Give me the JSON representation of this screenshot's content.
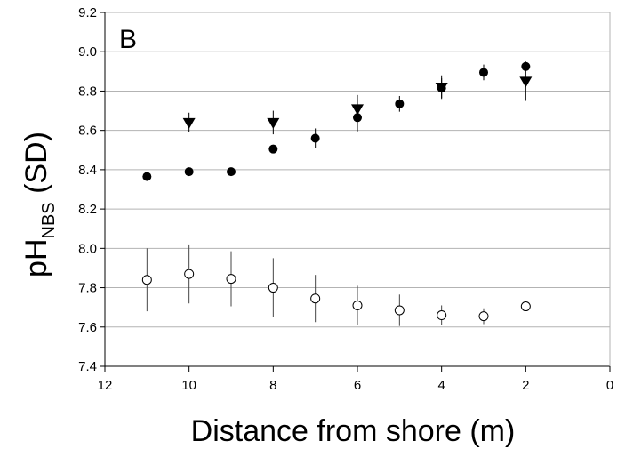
{
  "chart_data": {
    "type": "scatter",
    "panel_label": "B",
    "xlabel": "Distance from shore (m)",
    "ylabel": {
      "main": "pH",
      "subscript": "NBS",
      "suffix": " (SD)"
    },
    "xlim": [
      12,
      0
    ],
    "ylim": [
      7.4,
      9.2
    ],
    "x_reversed": true,
    "x_ticks": [
      12,
      10,
      8,
      6,
      4,
      2,
      0
    ],
    "x_tick_labels": [
      "12",
      "10",
      "8",
      "6",
      "4",
      "2",
      "0"
    ],
    "y_ticks": [
      7.4,
      7.6,
      7.8,
      8.0,
      8.2,
      8.4,
      8.6,
      8.8,
      9.0,
      9.2
    ],
    "y_tick_labels": [
      "7.4",
      "7.6",
      "7.8",
      "8.0",
      "8.2",
      "8.4",
      "8.6",
      "8.8",
      "9.0",
      "9.2"
    ],
    "grid": "horizontal",
    "series": [
      {
        "marker": "filled-circle",
        "color": "#000000",
        "points": [
          {
            "x": 11,
            "y": 8.365,
            "sd": 0.0
          },
          {
            "x": 10,
            "y": 8.39,
            "sd": 0.0
          },
          {
            "x": 9,
            "y": 8.39,
            "sd": 0.0
          },
          {
            "x": 8,
            "y": 8.505,
            "sd": 0.0
          },
          {
            "x": 7,
            "y": 8.56,
            "sd": 0.05
          },
          {
            "x": 6,
            "y": 8.665,
            "sd": 0.07
          },
          {
            "x": 5,
            "y": 8.735,
            "sd": 0.04
          },
          {
            "x": 4,
            "y": 8.815,
            "sd": 0.05
          },
          {
            "x": 3,
            "y": 8.895,
            "sd": 0.04
          },
          {
            "x": 2,
            "y": 8.925,
            "sd": 0.0
          }
        ]
      },
      {
        "marker": "filled-triangle-down",
        "color": "#000000",
        "points": [
          {
            "x": 10,
            "y": 8.64,
            "sd": 0.05
          },
          {
            "x": 8,
            "y": 8.64,
            "sd": 0.06
          },
          {
            "x": 6,
            "y": 8.71,
            "sd": 0.07
          },
          {
            "x": 4,
            "y": 8.82,
            "sd": 0.06
          },
          {
            "x": 2,
            "y": 8.85,
            "sd": 0.1
          }
        ]
      },
      {
        "marker": "open-circle",
        "color": "#000000",
        "points": [
          {
            "x": 11,
            "y": 7.84,
            "sd": 0.16
          },
          {
            "x": 10,
            "y": 7.87,
            "sd": 0.15
          },
          {
            "x": 9,
            "y": 7.845,
            "sd": 0.14
          },
          {
            "x": 8,
            "y": 7.8,
            "sd": 0.15
          },
          {
            "x": 7,
            "y": 7.745,
            "sd": 0.12
          },
          {
            "x": 6,
            "y": 7.71,
            "sd": 0.1
          },
          {
            "x": 5,
            "y": 7.685,
            "sd": 0.08
          },
          {
            "x": 4,
            "y": 7.66,
            "sd": 0.05
          },
          {
            "x": 3,
            "y": 7.655,
            "sd": 0.04
          },
          {
            "x": 2,
            "y": 7.705,
            "sd": 0.0
          }
        ]
      }
    ]
  }
}
